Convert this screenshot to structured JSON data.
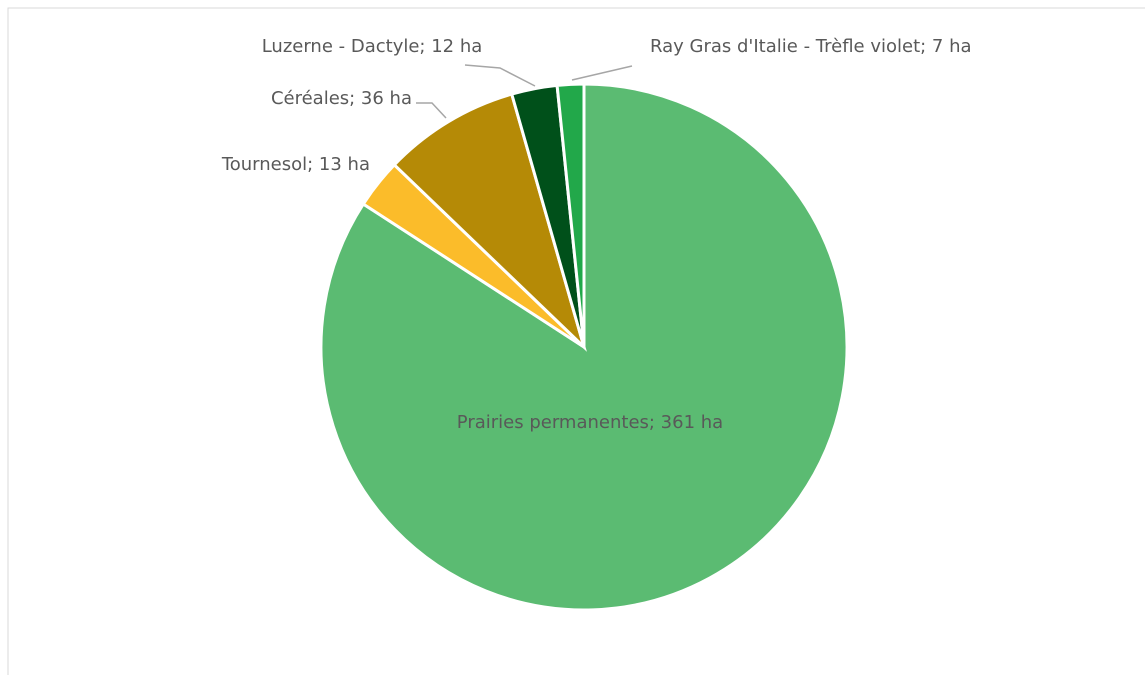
{
  "chart_data": {
    "type": "pie",
    "categories": [
      "Prairies permanentes",
      "Tournesol",
      "Céréales",
      "Luzerne - Dactyle",
      "Ray Gras d'Italie - Trèfle violet"
    ],
    "values": [
      361,
      13,
      36,
      12,
      7
    ],
    "value_labels": [
      "Prairies permanentes; 361 ha",
      "Tournesol; 13 ha",
      "Céréales; 36 ha",
      "Luzerne - Dactyle; 12 ha",
      "Ray Gras d'Italie - Trèfle violet; 7 ha"
    ],
    "colors": [
      "#5bbb72",
      "#fbbc2a",
      "#b58a06",
      "#00501a",
      "#22a84a"
    ]
  }
}
